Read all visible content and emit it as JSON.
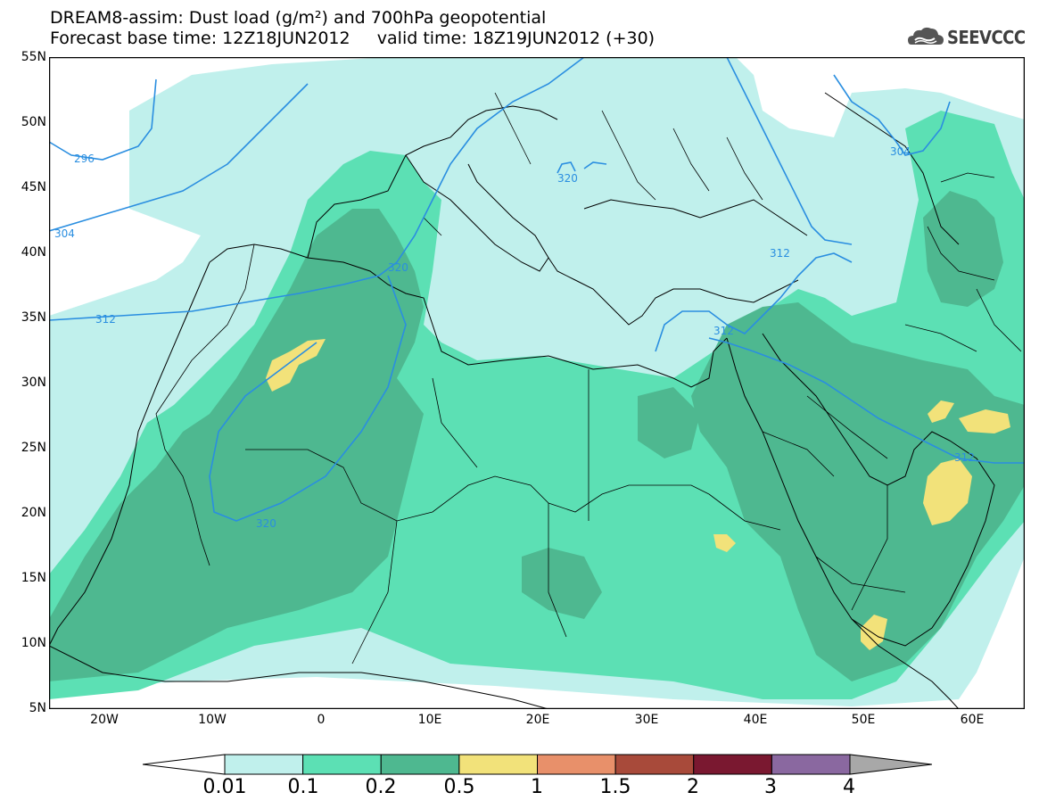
{
  "header": {
    "title_line1": "DREAM8-assim: Dust load (g/m²) and 700hPa geopotential",
    "title_line2": "Forecast base time: 12Z18JUN2012     valid time: 18Z19JUN2012 (+30)",
    "logo_text": "SEEVCCC"
  },
  "axes": {
    "lat_labels": [
      "55N",
      "50N",
      "45N",
      "40N",
      "35N",
      "30N",
      "25N",
      "20N",
      "15N",
      "10N",
      "5N"
    ],
    "lon_labels": [
      "20W",
      "10W",
      "0",
      "10E",
      "20E",
      "30E",
      "40E",
      "50E",
      "60E"
    ],
    "lat_range": [
      5,
      55
    ],
    "lon_range": [
      -25,
      65
    ]
  },
  "geopotential_contours": {
    "color": "#2a8ee0",
    "labels": [
      "296",
      "304",
      "312",
      "320",
      "320",
      "320",
      "312",
      "312",
      "312",
      "304"
    ]
  },
  "colorbar": {
    "levels": [
      "0.01",
      "0.1",
      "0.2",
      "0.5",
      "1",
      "1.5",
      "2",
      "3",
      "4"
    ],
    "colors": [
      "#c0f0ec",
      "#5ce0b4",
      "#4eb890",
      "#f2e27a",
      "#e8906a",
      "#a84a3a",
      "#7a1830",
      "#8a68a0",
      "#a8a8a8"
    ]
  }
}
